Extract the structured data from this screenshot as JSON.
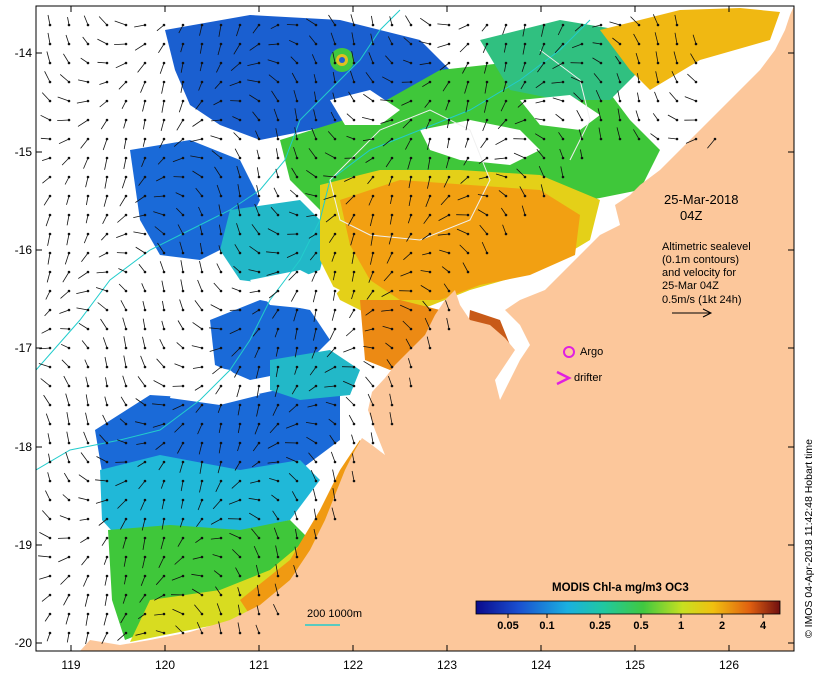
{
  "y_ticks": [
    "-14",
    "-15",
    "-16",
    "-17",
    "-18",
    "-19",
    "-20"
  ],
  "x_ticks": [
    "119",
    "120",
    "121",
    "122",
    "123",
    "124",
    "125",
    "126"
  ],
  "annotations": {
    "date": "25-Mar-2018",
    "time": "04Z",
    "sealevel_1": "Altimetric sealevel",
    "sealevel_2": "(0.1m contours)",
    "sealevel_3": "and velocity for",
    "sealevel_4": "25-Mar 04Z",
    "sealevel_5": "0.5m/s (1kt 24h)"
  },
  "legend": {
    "argo": "Argo",
    "drifter": "drifter",
    "bathy": "200  1000m"
  },
  "colorbar": {
    "title": "MODIS Chl-a mg/m3 OC3",
    "labels": [
      "0.05",
      "0.1",
      "0.25",
      "0.5",
      "1",
      "2",
      "4"
    ]
  },
  "credit": "© IMOS 04-Apr-2018 11:42:48 Hobart time",
  "colors": {
    "land": "#fcc79b",
    "low": "#1a5fd0",
    "mid": "#3fc73a",
    "high": "#f2a012",
    "contour": "#22cccc",
    "argo": "#e020e0"
  }
}
